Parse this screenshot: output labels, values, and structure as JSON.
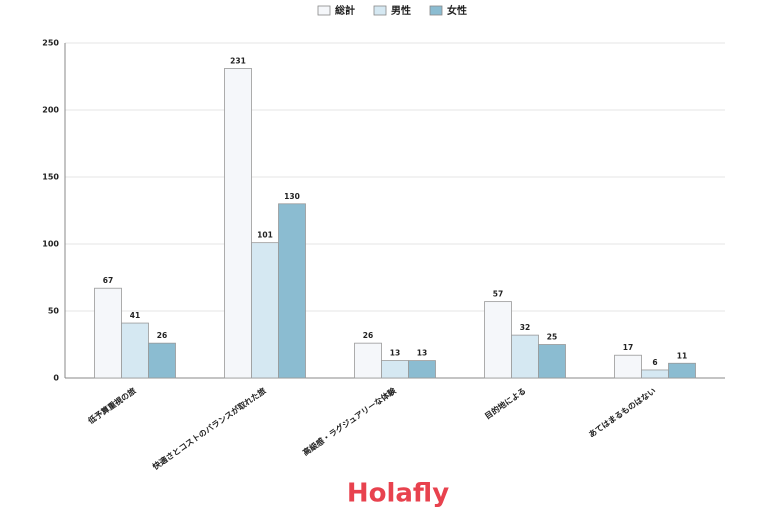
{
  "chart_data": {
    "type": "bar",
    "categories": [
      "低予算重視の旅",
      "快適さとコストのバランスが取れた旅",
      "高級感・ラグジュアリーな体験",
      "目的地による",
      "あてはまるものはない"
    ],
    "series": [
      {
        "name": "総計",
        "color": "#f5f7fa",
        "values": [
          67,
          231,
          26,
          57,
          17
        ]
      },
      {
        "name": "男性",
        "color": "#d5e8f2",
        "values": [
          41,
          101,
          13,
          32,
          6
        ]
      },
      {
        "name": "女性",
        "color": "#8bbcd1",
        "values": [
          26,
          130,
          13,
          25,
          11
        ]
      }
    ],
    "ylim": [
      0,
      250
    ],
    "yticks": [
      0,
      50,
      100,
      150,
      200,
      250
    ],
    "grid": true,
    "legend": "top"
  },
  "logo": "Holafly"
}
